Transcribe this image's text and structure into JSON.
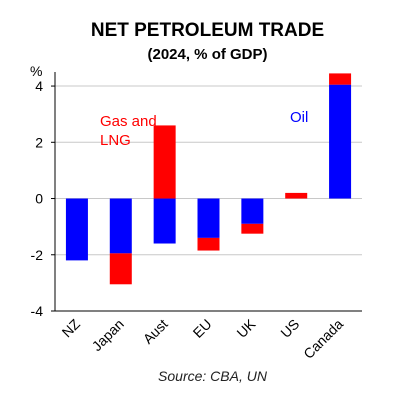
{
  "chart_data": {
    "type": "bar",
    "stacked": true,
    "title": "NET PETROLEUM TRADE",
    "subtitle": "(2024, % of GDP)",
    "ylabel": "%",
    "ylim": [
      -4,
      4.5
    ],
    "yticks": [
      4,
      2,
      0,
      -2,
      -4
    ],
    "grid": true,
    "categories": [
      "NZ",
      "Japan",
      "Aust",
      "EU",
      "UK",
      "US",
      "Canada"
    ],
    "series": [
      {
        "name": "Oil",
        "color": "#0000ff",
        "values": [
          -2.2,
          -1.95,
          -1.6,
          -1.4,
          -0.9,
          0.0,
          4.05
        ]
      },
      {
        "name": "Gas and LNG",
        "color": "#ff0000",
        "values": [
          0.0,
          -1.1,
          2.6,
          -0.45,
          -0.35,
          0.2,
          0.4
        ]
      }
    ],
    "annotations": [
      {
        "text": "Gas and LNG",
        "color": "#ff0000"
      },
      {
        "text": "Oil",
        "color": "#0000ff"
      }
    ],
    "source": "Source: CBA, UN"
  }
}
